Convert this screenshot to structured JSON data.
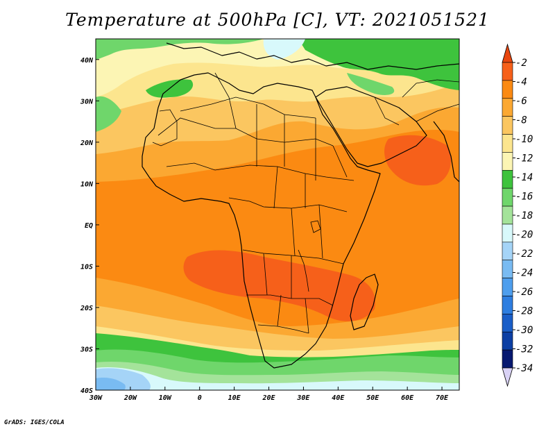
{
  "title": "Temperature at 500hPa [C], VT: 2021051521",
  "credit": "GrADS: IGES/COLA",
  "map": {
    "lon_range": [
      -30,
      75
    ],
    "lat_range": [
      -40,
      45
    ],
    "lon_ticks": [
      -30,
      -20,
      -10,
      0,
      10,
      20,
      30,
      40,
      50,
      60,
      70
    ],
    "lon_labels": [
      "30W",
      "20W",
      "10W",
      "0",
      "10E",
      "20E",
      "30E",
      "40E",
      "50E",
      "60E",
      "70E"
    ],
    "lat_ticks": [
      40,
      30,
      20,
      10,
      0,
      -10,
      -20,
      -30,
      -40
    ],
    "lat_labels": [
      "40N",
      "30N",
      "20N",
      "10N",
      "EQ",
      "10S",
      "20S",
      "30S",
      "40S"
    ]
  },
  "colorbar": {
    "labels": [
      "-2",
      "-4",
      "-6",
      "-8",
      "-10",
      "-12",
      "-14",
      "-16",
      "-18",
      "-20",
      "-22",
      "-24",
      "-26",
      "-28",
      "-30",
      "-32",
      "-34"
    ],
    "top_arrow_color": "#e8460f",
    "colors": [
      "#f6601a",
      "#fb8a12",
      "#fba832",
      "#fbc660",
      "#fce58e",
      "#fcf5b4",
      "#3ec33d",
      "#6fd66b",
      "#a4e39a",
      "#d8f9fb",
      "#a5d4f7",
      "#79bbf2",
      "#4e9eed",
      "#2e7ee0",
      "#1a5ec8",
      "#0c3fa4",
      "#061870"
    ],
    "bottom_arrow_color": "#d9d2f5"
  }
}
